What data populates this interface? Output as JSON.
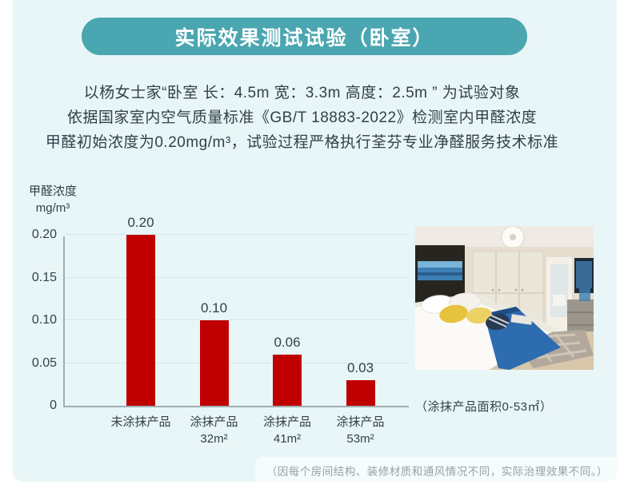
{
  "colors": {
    "accent_teal": "#4aa6b0",
    "panel_bg": "#e9f6f8",
    "bar_red": "#c00000",
    "text_dark": "#32404a",
    "axis_gray": "#9fadb3",
    "grid_gray": "#d9e6e8",
    "muted_gray": "#94a3a9"
  },
  "header": {
    "title": "实际效果测试试验（卧室）"
  },
  "description": {
    "line1": "以杨女士家“卧室 长：4.5m 宽：3.3m 高度：2.5m ” 为试验对象",
    "line2": "依据国家室内空气质量标准《GB/T 18883-2022》检测室内甲醛浓度",
    "line3": "甲醛初始浓度为0.20mg/m³，试验过程严格执行荃芬专业净醛服务技术标准"
  },
  "chart_data": {
    "type": "bar",
    "title": "",
    "ylabel_lines": [
      "甲醛浓度",
      "mg/m³"
    ],
    "categories": [
      [
        "未涂抹产品"
      ],
      [
        "涂抹产品",
        "32m²"
      ],
      [
        "涂抹产品",
        "41m²"
      ],
      [
        "涂抹产品",
        "53m²"
      ]
    ],
    "values": [
      0.2,
      0.1,
      0.06,
      0.03
    ],
    "value_labels": [
      "0.20",
      "0.10",
      "0.06",
      "0.03"
    ],
    "yticks": [
      0,
      0.05,
      0.1,
      0.15,
      0.2
    ],
    "ytick_labels": [
      "0",
      "0.05",
      "0.10",
      "0.15",
      "0.20"
    ],
    "ylim": [
      0,
      0.2
    ],
    "grid": true,
    "legend": "none",
    "bar_color": "#c00000"
  },
  "photo": {
    "caption": "（涂抹产品面积0-53㎡）",
    "subject": "bedroom"
  },
  "footer": {
    "note": "（因每个房间结构、装修材质和通风情况不同，实际治理效果不同。）"
  }
}
